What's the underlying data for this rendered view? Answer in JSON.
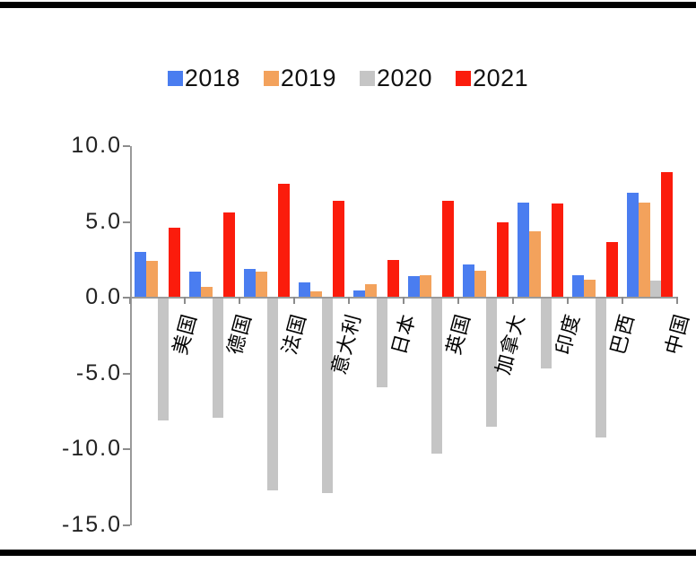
{
  "colors": {
    "series_2018": "#4a7df0",
    "series_2019": "#f3a25c",
    "series_2020": "#c5c5c5",
    "series_2021": "#fb1c0c",
    "axis": "#9a9a9a",
    "rule": "#000000",
    "text": "#1a1a1a"
  },
  "legend": {
    "position": "top-center",
    "entries": [
      {
        "label": "2018",
        "color": "#4a7df0"
      },
      {
        "label": "2019",
        "color": "#f3a25c"
      },
      {
        "label": "2020",
        "color": "#c5c5c5"
      },
      {
        "label": "2021",
        "color": "#fb1c0c"
      }
    ]
  },
  "chart_data": {
    "type": "bar",
    "title": "",
    "xlabel": "",
    "ylabel": "",
    "categories": [
      "美国",
      "德国",
      "法国",
      "意大利",
      "日本",
      "英国",
      "加拿大",
      "印度",
      "巴西",
      "中国"
    ],
    "series": [
      {
        "name": "2018",
        "color": "#4a7df0",
        "values": [
          3.0,
          1.7,
          1.9,
          1.0,
          0.5,
          1.4,
          2.2,
          6.3,
          1.5,
          6.9
        ]
      },
      {
        "name": "2019",
        "color": "#f3a25c",
        "values": [
          2.4,
          0.7,
          1.7,
          0.4,
          0.9,
          1.5,
          1.8,
          4.4,
          1.2,
          6.3
        ]
      },
      {
        "name": "2020",
        "color": "#c5c5c5",
        "values": [
          -8.1,
          -7.9,
          -12.7,
          -12.9,
          -5.9,
          -10.3,
          -8.5,
          -4.7,
          -9.2,
          1.1
        ]
      },
      {
        "name": "2021",
        "color": "#fb1c0c",
        "values": [
          4.6,
          5.6,
          7.5,
          6.4,
          2.5,
          6.4,
          5.0,
          6.2,
          3.7,
          8.3
        ]
      }
    ],
    "ylim": [
      -15.0,
      10.0
    ],
    "yticks": [
      10.0,
      5.0,
      0.0,
      -5.0,
      -10.0,
      -15.0
    ],
    "ytick_labels": [
      "10.0",
      "5.0",
      "0.0",
      "-5.0",
      "-10.0",
      "-15.0"
    ],
    "grid": false,
    "legend_position": "top"
  }
}
